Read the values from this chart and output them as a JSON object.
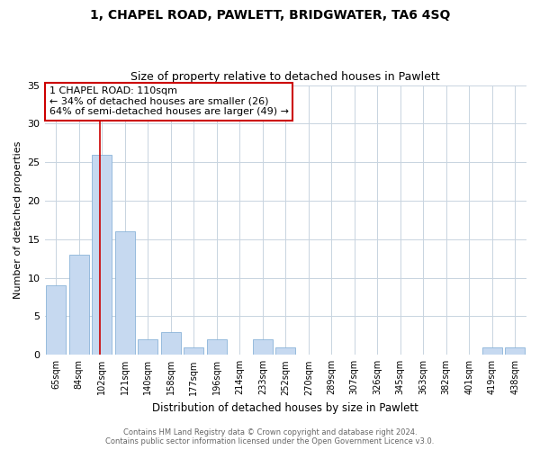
{
  "title1": "1, CHAPEL ROAD, PAWLETT, BRIDGWATER, TA6 4SQ",
  "title2": "Size of property relative to detached houses in Pawlett",
  "xlabel": "Distribution of detached houses by size in Pawlett",
  "ylabel": "Number of detached properties",
  "categories": [
    "65sqm",
    "84sqm",
    "102sqm",
    "121sqm",
    "140sqm",
    "158sqm",
    "177sqm",
    "196sqm",
    "214sqm",
    "233sqm",
    "252sqm",
    "270sqm",
    "289sqm",
    "307sqm",
    "326sqm",
    "345sqm",
    "363sqm",
    "382sqm",
    "401sqm",
    "419sqm",
    "438sqm"
  ],
  "values": [
    9,
    13,
    26,
    16,
    2,
    3,
    1,
    2,
    0,
    2,
    1,
    0,
    0,
    0,
    0,
    0,
    0,
    0,
    0,
    1,
    1
  ],
  "bar_color": "#c6d9f0",
  "bar_edgecolor": "#8ab4d8",
  "highlight_index": 2,
  "highlight_color": "#cc0000",
  "ylim": [
    0,
    35
  ],
  "yticks": [
    0,
    5,
    10,
    15,
    20,
    25,
    30,
    35
  ],
  "annotation_title": "1 CHAPEL ROAD: 110sqm",
  "annotation_line1": "← 34% of detached houses are smaller (26)",
  "annotation_line2": "64% of semi-detached houses are larger (49) →",
  "annotation_box_color": "#ffffff",
  "annotation_box_edgecolor": "#cc0000",
  "footer1": "Contains HM Land Registry data © Crown copyright and database right 2024.",
  "footer2": "Contains public sector information licensed under the Open Government Licence v3.0.",
  "background_color": "#ffffff",
  "grid_color": "#c8d4e0"
}
